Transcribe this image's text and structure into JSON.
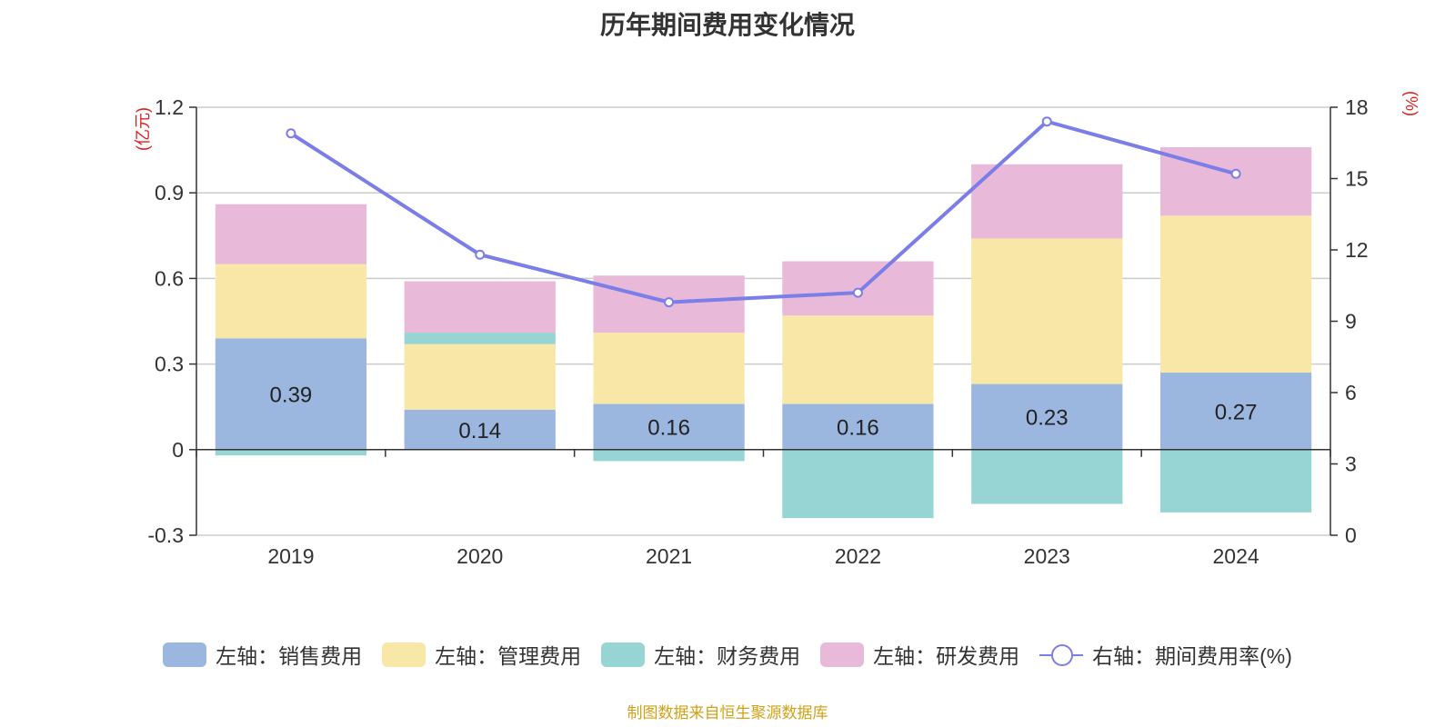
{
  "chart_data": {
    "type": "bar",
    "title": "历年期间费用变化情况",
    "categories": [
      "2019",
      "2020",
      "2021",
      "2022",
      "2023",
      "2024"
    ],
    "y_left": {
      "unit_label": "(亿元)",
      "ylim": [
        -0.3,
        1.2
      ],
      "ticks": [
        -0.3,
        0,
        0.3,
        0.6,
        0.9,
        1.2
      ],
      "tick_labels": [
        "-0.3",
        "0",
        "0.3",
        "0.6",
        "0.9",
        "1.2"
      ]
    },
    "y_right": {
      "unit_label": "(%)",
      "ylim": [
        0,
        18
      ],
      "ticks": [
        0,
        3,
        6,
        9,
        12,
        15,
        18
      ],
      "tick_labels": [
        "0",
        "3",
        "6",
        "9",
        "12",
        "15",
        "18"
      ]
    },
    "series": [
      {
        "name": "左轴：销售费用",
        "type": "bar",
        "axis": "left",
        "color": "#9bb7e0",
        "values": [
          0.39,
          0.14,
          0.16,
          0.16,
          0.23,
          0.27
        ],
        "data_labels": [
          "0.39",
          "0.14",
          "0.16",
          "0.16",
          "0.23",
          "0.27"
        ]
      },
      {
        "name": "左轴：管理费用",
        "type": "bar",
        "axis": "left",
        "color": "#f8e7a7",
        "values": [
          0.26,
          0.23,
          0.25,
          0.31,
          0.51,
          0.55
        ]
      },
      {
        "name": "左轴：财务费用",
        "type": "bar",
        "axis": "left",
        "color": "#97d4d4",
        "values": [
          -0.02,
          0.04,
          -0.04,
          -0.24,
          -0.19,
          -0.22
        ]
      },
      {
        "name": "左轴：研发费用",
        "type": "bar",
        "axis": "left",
        "color": "#e8b9d9",
        "values": [
          0.21,
          0.18,
          0.2,
          0.19,
          0.26,
          0.24
        ]
      },
      {
        "name": "右轴：期间费用率(%)",
        "type": "line",
        "axis": "right",
        "color": "#7b7de8",
        "values": [
          16.9,
          11.8,
          9.8,
          10.2,
          17.4,
          15.2
        ]
      }
    ],
    "grid": true,
    "legend_position": "bottom"
  },
  "colors": {
    "axis_unit": "#e02020",
    "source_text": "#d4a017",
    "grid": "#cccccc",
    "text": "#333333"
  },
  "footer": {
    "source": "制图数据来自恒生聚源数据库"
  }
}
